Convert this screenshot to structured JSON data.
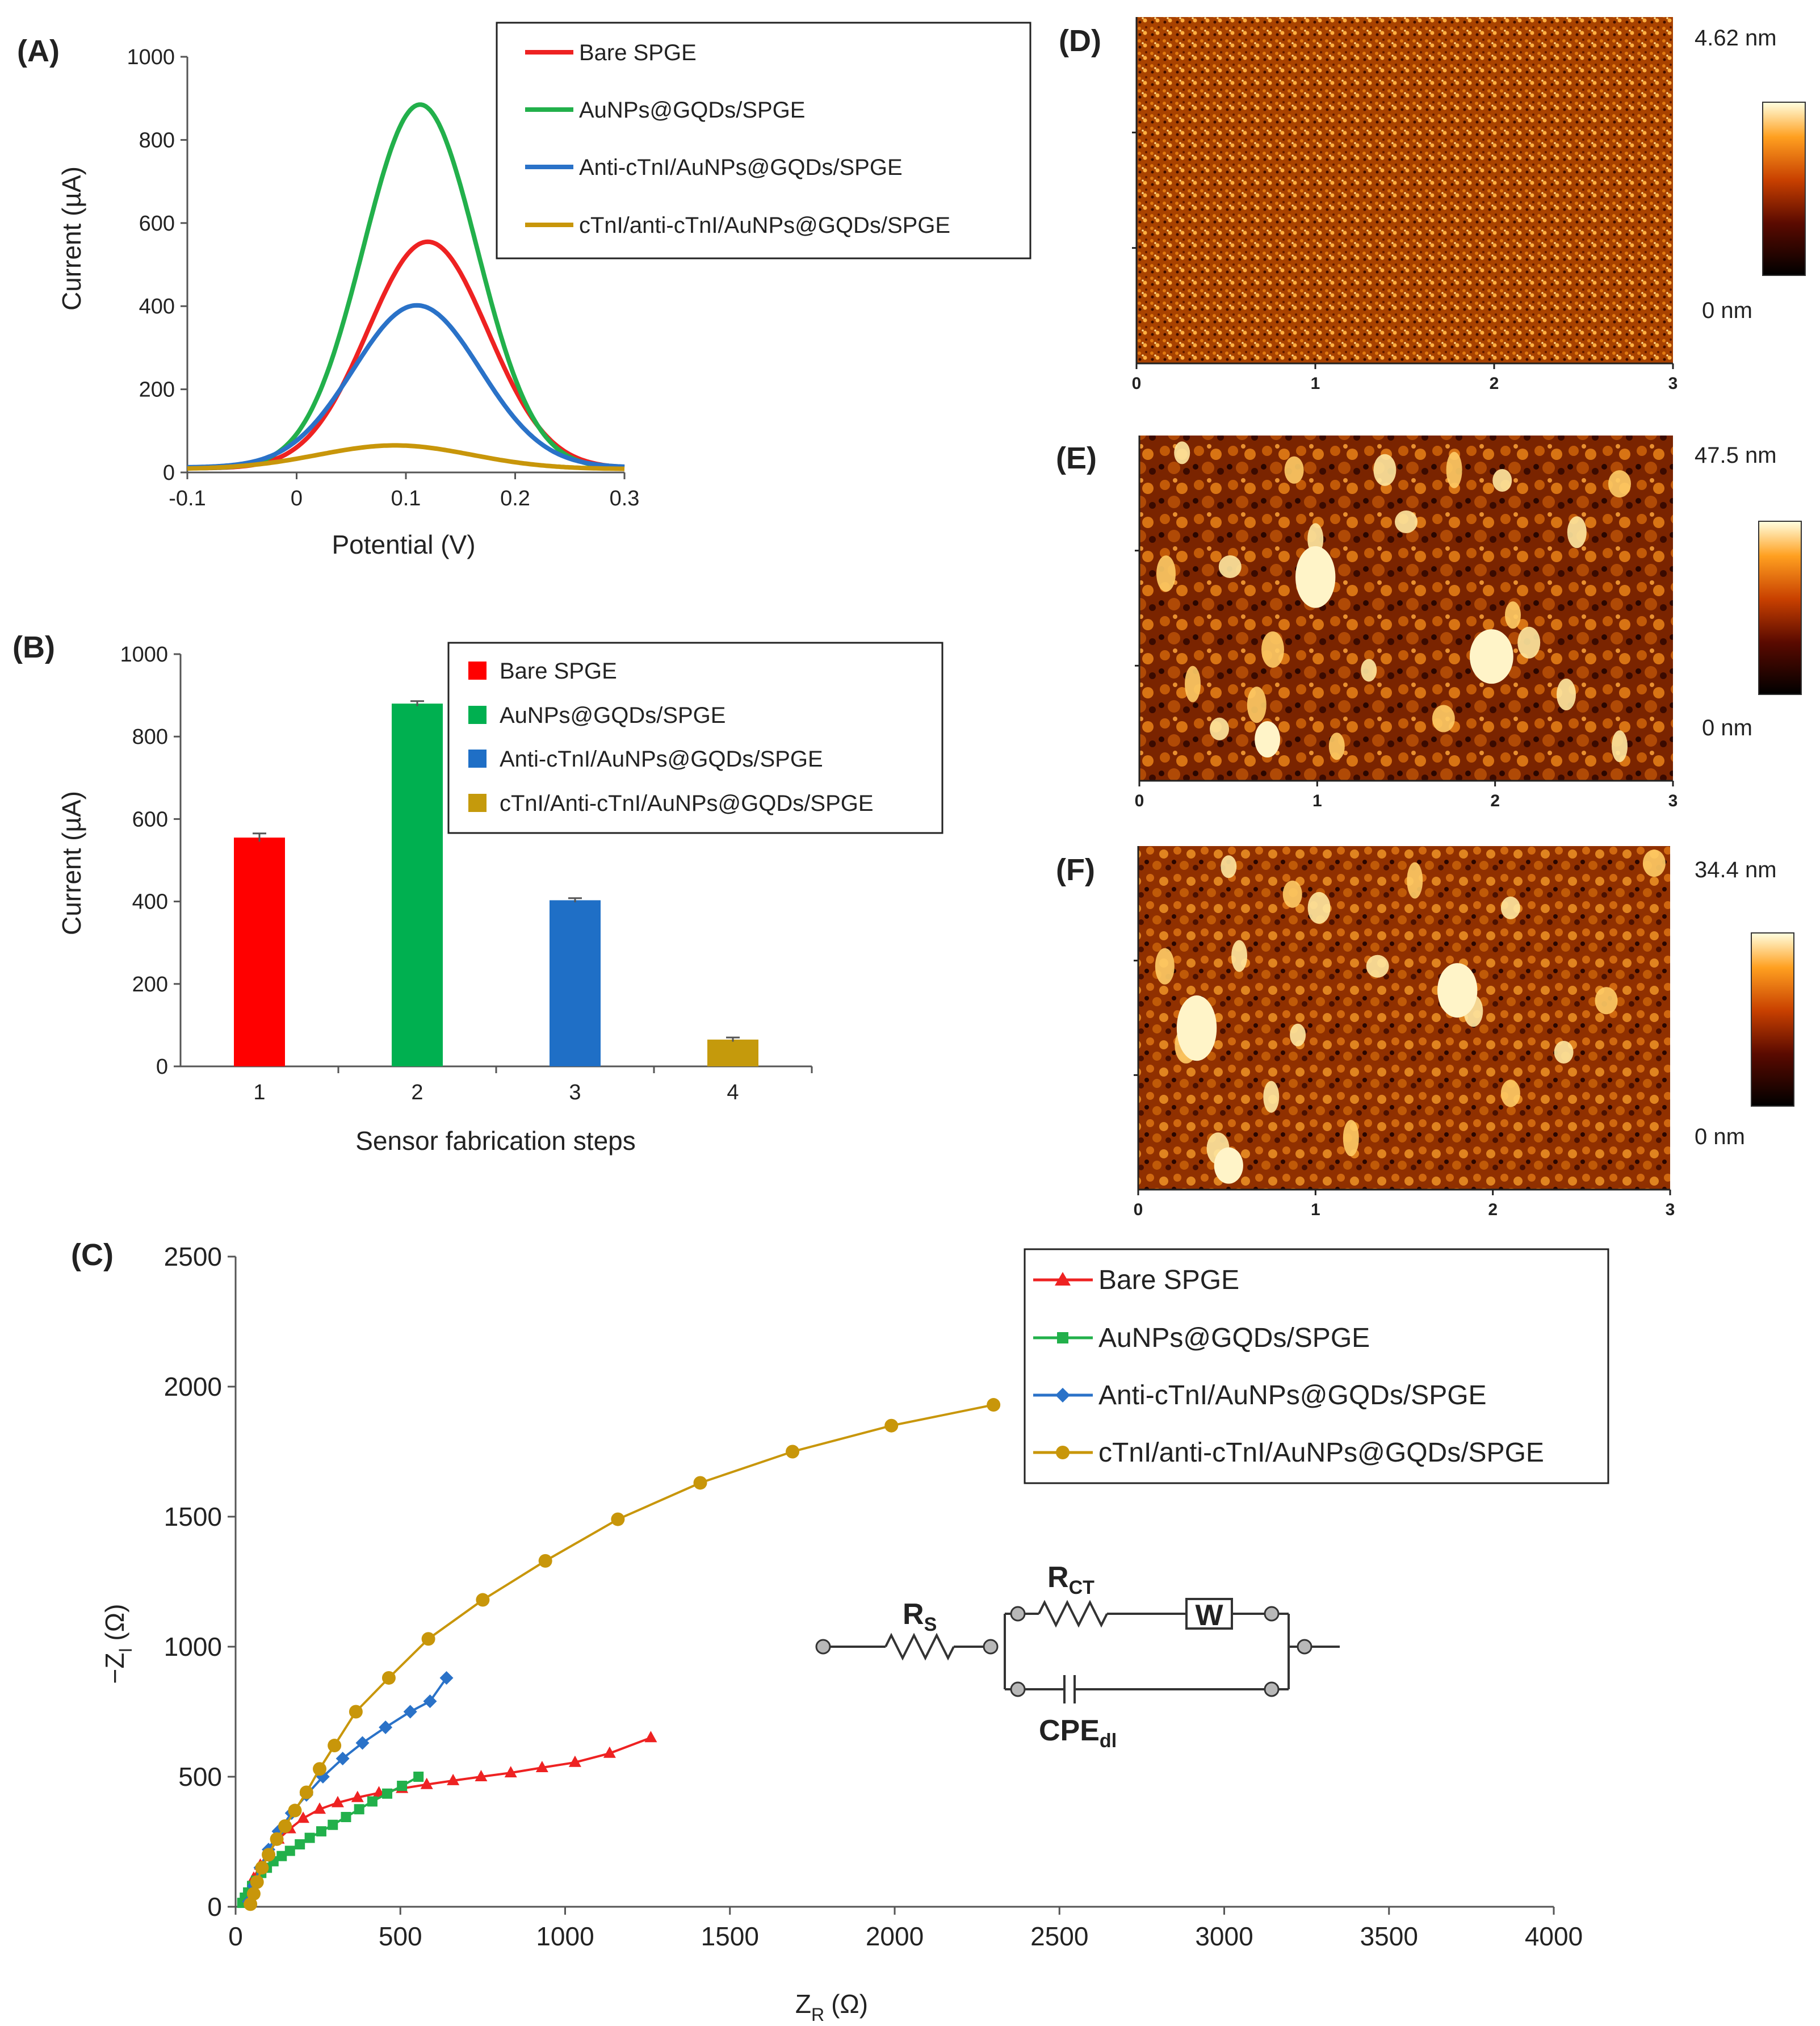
{
  "panels": {
    "A": "(A)",
    "B": "(B)",
    "C": "(C)",
    "D": "(D)",
    "E": "(E)",
    "F": "(F)"
  },
  "colors": {
    "bare": "#ee2222",
    "aunp": "#22b04b",
    "anti": "#2a72c8",
    "ctni": "#c8960a",
    "bar_bare": "#ff0000",
    "bar_aunp": "#00b050",
    "bar_anti": "#1f6fc6",
    "bar_ctni": "#c59a0c"
  },
  "chart_data": [
    {
      "id": "A",
      "type": "line",
      "xlabel": "Potential (V)",
      "ylabel": "Current (µA)",
      "xlim": [
        -0.1,
        0.3
      ],
      "ylim": [
        0,
        1000
      ],
      "xticks": [
        -0.1,
        0,
        0.1,
        0.2,
        0.3
      ],
      "xtick_labels": [
        "-0.1",
        "0",
        "0.1",
        "0.2",
        "0.3"
      ],
      "yticks": [
        0,
        200,
        400,
        600,
        800,
        1000
      ],
      "series": [
        {
          "name": "Bare SPGE",
          "color": "bare",
          "peak_x": 0.12,
          "peak_y": 555,
          "sigma": 0.055,
          "baseline": 10
        },
        {
          "name": "AuNPs@GQDs/SPGE",
          "color": "aunp",
          "peak_x": 0.113,
          "peak_y": 885,
          "sigma": 0.052,
          "baseline": 10
        },
        {
          "name": "Anti-cTnI/AuNPs@GQDs/SPGE",
          "color": "anti",
          "peak_x": 0.11,
          "peak_y": 402,
          "sigma": 0.058,
          "baseline": 12
        },
        {
          "name": "cTnI/anti-cTnI/AuNPs@GQDs/SPGE",
          "color": "ctni",
          "peak_x": 0.09,
          "peak_y": 65,
          "sigma": 0.07,
          "baseline": 8
        }
      ]
    },
    {
      "id": "B",
      "type": "bar",
      "xlabel": "Sensor fabrication steps",
      "ylabel": "Current (µA)",
      "ylim": [
        0,
        1000
      ],
      "yticks": [
        0,
        200,
        400,
        600,
        800,
        1000
      ],
      "categories": [
        "1",
        "2",
        "3",
        "4"
      ],
      "values": [
        555,
        880,
        403,
        65
      ],
      "errors": [
        10,
        6,
        5,
        5
      ],
      "bar_colors": [
        "bar_bare",
        "bar_aunp",
        "bar_anti",
        "bar_ctni"
      ],
      "legend": [
        "Bare SPGE",
        "AuNPs@GQDs/SPGE",
        "Anti-cTnI/AuNPs@GQDs/SPGE",
        "cTnI/Anti-cTnI/AuNPs@GQDs/SPGE"
      ]
    },
    {
      "id": "C",
      "type": "scatter",
      "xlabel_main": "Z",
      "xlabel_sub": "R",
      "xlabel_unit": "(Ω)",
      "ylabel_main": "−Z",
      "ylabel_sub": "I",
      "ylabel_unit": "(Ω)",
      "xlim": [
        0,
        4000
      ],
      "ylim": [
        0,
        2500
      ],
      "xticks": [
        0,
        500,
        1000,
        1500,
        2000,
        2500,
        3000,
        3500,
        4000
      ],
      "yticks": [
        0,
        500,
        1000,
        1500,
        2000,
        2500
      ],
      "series": [
        {
          "name": "Bare SPGE",
          "color": "bare",
          "marker": "triangle",
          "points": [
            [
              28,
              20
            ],
            [
              40,
              60
            ],
            [
              55,
              110
            ],
            [
              75,
              160
            ],
            [
              100,
              210
            ],
            [
              130,
              260
            ],
            [
              165,
              300
            ],
            [
              205,
              340
            ],
            [
              255,
              375
            ],
            [
              310,
              400
            ],
            [
              370,
              420
            ],
            [
              435,
              438
            ],
            [
              505,
              455
            ],
            [
              580,
              470
            ],
            [
              660,
              485
            ],
            [
              745,
              500
            ],
            [
              835,
              515
            ],
            [
              930,
              535
            ],
            [
              1030,
              555
            ],
            [
              1135,
              590
            ],
            [
              1260,
              650
            ]
          ]
        },
        {
          "name": "AuNPs@GQDs/SPGE",
          "color": "aunp",
          "marker": "square",
          "points": [
            [
              20,
              15
            ],
            [
              28,
              35
            ],
            [
              38,
              55
            ],
            [
              50,
              80
            ],
            [
              62,
              100
            ],
            [
              78,
              130
            ],
            [
              95,
              150
            ],
            [
              115,
              175
            ],
            [
              140,
              195
            ],
            [
              165,
              215
            ],
            [
              195,
              240
            ],
            [
              225,
              265
            ],
            [
              260,
              290
            ],
            [
              295,
              315
            ],
            [
              335,
              345
            ],
            [
              375,
              375
            ],
            [
              415,
              405
            ],
            [
              460,
              435
            ],
            [
              505,
              465
            ],
            [
              555,
              500
            ]
          ]
        },
        {
          "name": "Anti-cTnI/AuNPs@GQDs/SPGE",
          "color": "anti",
          "marker": "diamond",
          "points": [
            [
              40,
              20
            ],
            [
              55,
              80
            ],
            [
              75,
              150
            ],
            [
              100,
              220
            ],
            [
              130,
              290
            ],
            [
              170,
              360
            ],
            [
              215,
              430
            ],
            [
              265,
              500
            ],
            [
              325,
              570
            ],
            [
              385,
              630
            ],
            [
              455,
              690
            ],
            [
              530,
              750
            ],
            [
              590,
              790
            ],
            [
              640,
              880
            ]
          ]
        },
        {
          "name": "cTnI/anti-cTnI/AuNPs@GQDs/SPGE",
          "color": "ctni",
          "marker": "circle",
          "points": [
            [
              45,
              10
            ],
            [
              55,
              50
            ],
            [
              65,
              95
            ],
            [
              80,
              150
            ],
            [
              100,
              200
            ],
            [
              125,
              260
            ],
            [
              150,
              310
            ],
            [
              180,
              370
            ],
            [
              215,
              440
            ],
            [
              255,
              530
            ],
            [
              300,
              620
            ],
            [
              365,
              750
            ],
            [
              465,
              880
            ],
            [
              585,
              1030
            ],
            [
              750,
              1180
            ],
            [
              940,
              1330
            ],
            [
              1160,
              1490
            ],
            [
              1410,
              1630
            ],
            [
              1690,
              1750
            ],
            [
              1990,
              1850
            ],
            [
              2300,
              1930
            ]
          ]
        }
      ]
    }
  ],
  "legend_A": [
    "Bare SPGE",
    "AuNPs@GQDs/SPGE",
    "Anti-cTnI/AuNPs@GQDs/SPGE",
    "cTnI/anti-cTnI/AuNPs@GQDs/SPGE"
  ],
  "legend_C": [
    "Bare SPGE",
    "AuNPs@GQDs/SPGE",
    "Anti-cTnI/AuNPs@GQDs/SPGE",
    "cTnI/anti-cTnI/AuNPs@GQDs/SPGE"
  ],
  "afm": [
    {
      "panel": "D",
      "max": "4.62 nm",
      "min": "0 nm",
      "xticks": [
        "0",
        "1",
        "2",
        "3"
      ]
    },
    {
      "panel": "E",
      "max": "47.5 nm",
      "min": "0 nm",
      "xticks": [
        "0",
        "1",
        "2",
        "3"
      ]
    },
    {
      "panel": "F",
      "max": "34.4 nm",
      "min": "0 nm",
      "xticks": [
        "0",
        "1",
        "2",
        "3"
      ]
    }
  ],
  "circuit": {
    "rs": "R",
    "rs_sub": "S",
    "rct": "R",
    "rct_sub": "CT",
    "w": "W",
    "cpe": "CPE",
    "cpe_sub": "dl"
  }
}
